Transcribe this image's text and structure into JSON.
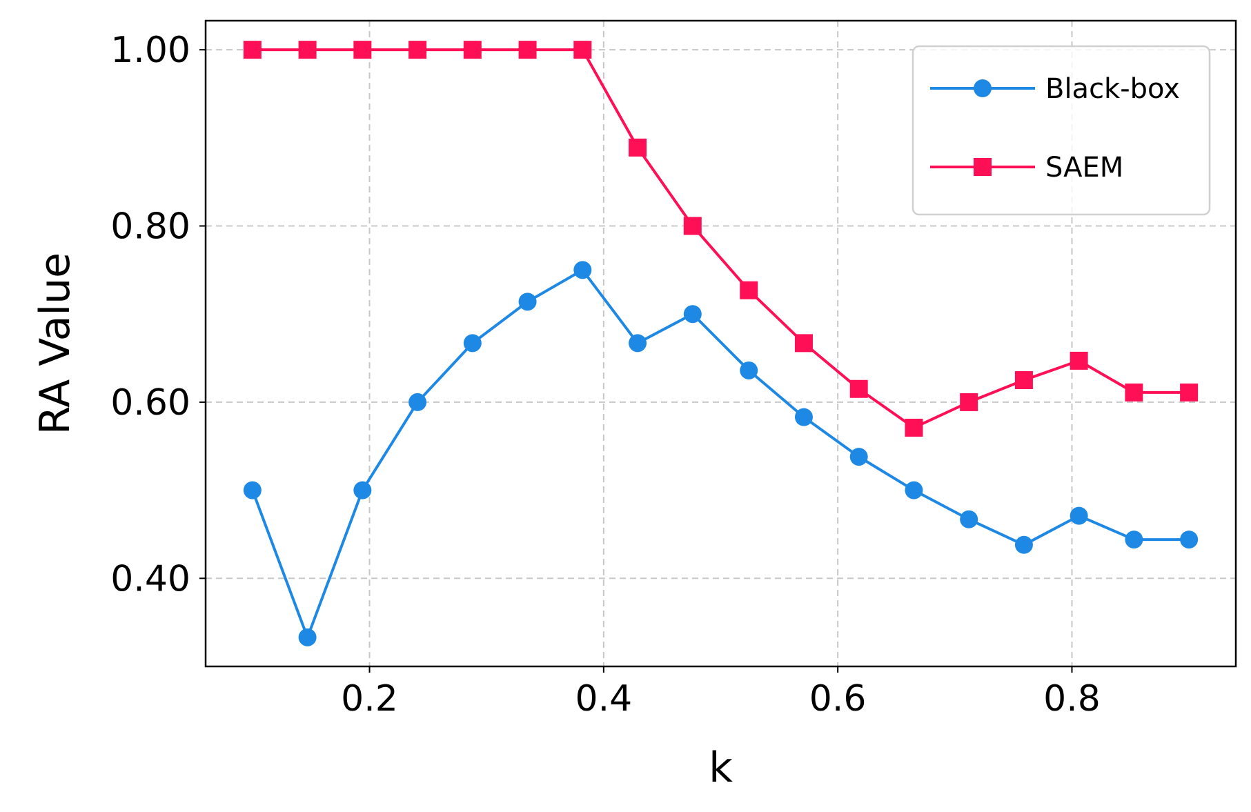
{
  "chart_data": {
    "type": "line",
    "title": "",
    "xlabel": "k",
    "ylabel": "RA Value",
    "xlim": [
      0.06,
      0.94
    ],
    "ylim": [
      0.3,
      1.033
    ],
    "xticks": [
      {
        "value": 0.2,
        "label": "0.2"
      },
      {
        "value": 0.4,
        "label": "0.4"
      },
      {
        "value": 0.6,
        "label": "0.6"
      },
      {
        "value": 0.8,
        "label": "0.8"
      }
    ],
    "yticks": [
      {
        "value": 0.4,
        "label": "0.40"
      },
      {
        "value": 0.6,
        "label": "0.60"
      },
      {
        "value": 0.8,
        "label": "0.80"
      },
      {
        "value": 1.0,
        "label": "1.00"
      }
    ],
    "grid": true,
    "legend_position": "top-right",
    "x": [
      0.1,
      0.147,
      0.194,
      0.241,
      0.288,
      0.335,
      0.382,
      0.429,
      0.476,
      0.524,
      0.571,
      0.618,
      0.665,
      0.712,
      0.759,
      0.806,
      0.853,
      0.9
    ],
    "series": [
      {
        "name": "Black-box",
        "color": "#1e88e5",
        "marker": "circle",
        "values": [
          0.5,
          0.333,
          0.5,
          0.6,
          0.667,
          0.714,
          0.75,
          0.667,
          0.7,
          0.636,
          0.583,
          0.538,
          0.5,
          0.467,
          0.438,
          0.471,
          0.444,
          0.444
        ]
      },
      {
        "name": "SAEM",
        "color": "#ff0f55",
        "marker": "square",
        "values": [
          1.0,
          1.0,
          1.0,
          1.0,
          1.0,
          1.0,
          1.0,
          0.889,
          0.8,
          0.727,
          0.667,
          0.615,
          0.571,
          0.6,
          0.625,
          0.647,
          0.611,
          0.611
        ]
      }
    ]
  }
}
